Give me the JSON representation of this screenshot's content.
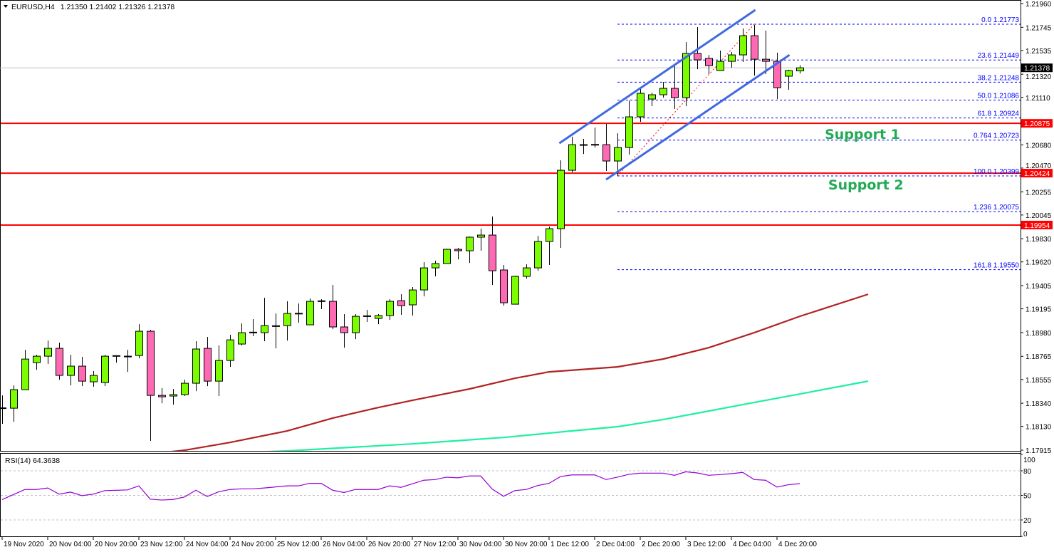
{
  "header": {
    "symbol": "EURUSD,H4",
    "ohlc_text": "1.21350 1.21402 1.21326 1.21378",
    "menu_icon": "triangle-down-icon"
  },
  "chart_data": [
    {
      "type": "candlestick",
      "symbol": "EURUSD",
      "timeframe": "H4",
      "ylim": [
        1.17915,
        1.2196
      ],
      "y_ticks": [
        "1.21960",
        "1.21745",
        "1.21535",
        "1.21320",
        "1.21110",
        "1.20680",
        "1.20470",
        "1.20255",
        "1.20045",
        "1.19830",
        "1.19620",
        "1.19405",
        "1.19195",
        "1.18980",
        "1.18765",
        "1.18555",
        "1.18340",
        "1.18130",
        "1.17915"
      ],
      "x_ticks": [
        "19 Nov 2020",
        "20 Nov 04:00",
        "20 Nov 20:00",
        "23 Nov 12:00",
        "24 Nov 04:00",
        "24 Nov 20:00",
        "25 Nov 12:00",
        "26 Nov 04:00",
        "26 Nov 20:00",
        "27 Nov 12:00",
        "30 Nov 04:00",
        "30 Nov 20:00",
        "1 Dec 12:00",
        "2 Dec 04:00",
        "2 Dec 20:00",
        "3 Dec 12:00",
        "4 Dec 04:00",
        "4 Dec 20:00"
      ],
      "x_tick_every_bars": 4,
      "ohlc_columns": [
        "open",
        "high",
        "low",
        "close"
      ],
      "candles": [
        [
          1.18295,
          1.18411,
          1.18153,
          1.18295
        ],
        [
          1.18295,
          1.18501,
          1.18172,
          1.18463
        ],
        [
          1.18463,
          1.18824,
          1.18463,
          1.1874
        ],
        [
          1.18708,
          1.18779,
          1.18643,
          1.18766
        ],
        [
          1.18766,
          1.18908,
          1.18695,
          1.18837
        ],
        [
          1.18837,
          1.18889,
          1.18553,
          1.18592
        ],
        [
          1.18592,
          1.18779,
          1.18501,
          1.18676
        ],
        [
          1.18676,
          1.1876,
          1.18495,
          1.1854
        ],
        [
          1.18534,
          1.18631,
          1.18489,
          1.18592
        ],
        [
          1.18527,
          1.18779,
          1.18495,
          1.18766
        ],
        [
          1.18766,
          1.1877,
          1.18708,
          1.1877
        ],
        [
          1.1876,
          1.18824,
          1.18624,
          1.18766
        ],
        [
          1.18772,
          1.19056,
          1.18747,
          1.18992
        ],
        [
          1.18992,
          1.19005,
          1.17998,
          1.18411
        ],
        [
          1.18411,
          1.18476,
          1.1834,
          1.18398
        ],
        [
          1.18405,
          1.18469,
          1.18327,
          1.18418
        ],
        [
          1.18418,
          1.18553,
          1.18405,
          1.18521
        ],
        [
          1.18521,
          1.18902,
          1.1845,
          1.18831
        ],
        [
          1.18837,
          1.1894,
          1.18495,
          1.1854
        ],
        [
          1.1854,
          1.18863,
          1.18405,
          1.18727
        ],
        [
          1.18727,
          1.1896,
          1.18669,
          1.18914
        ],
        [
          1.18876,
          1.19063,
          1.18863,
          1.18979
        ],
        [
          1.18979,
          1.19102,
          1.18947,
          1.18982
        ],
        [
          1.18979,
          1.19295,
          1.18902,
          1.19043
        ],
        [
          1.1904,
          1.19153,
          1.18837,
          1.19037
        ],
        [
          1.19043,
          1.19263,
          1.18908,
          1.19153
        ],
        [
          1.19153,
          1.19243,
          1.19069,
          1.1915
        ],
        [
          1.1905,
          1.19289,
          1.1905,
          1.19263
        ],
        [
          1.19263,
          1.19282,
          1.19192,
          1.19266
        ],
        [
          1.19263,
          1.19411,
          1.19011,
          1.19031
        ],
        [
          1.19031,
          1.19147,
          1.18843,
          1.18979
        ],
        [
          1.18979,
          1.19147,
          1.18921,
          1.19127
        ],
        [
          1.19127,
          1.19185,
          1.19076,
          1.1913
        ],
        [
          1.19108,
          1.19147,
          1.19056,
          1.19134
        ],
        [
          1.19134,
          1.19282,
          1.19095,
          1.19263
        ],
        [
          1.19269,
          1.19327,
          1.1914,
          1.19224
        ],
        [
          1.19231,
          1.19392,
          1.19134,
          1.19366
        ],
        [
          1.19366,
          1.19618,
          1.19308,
          1.19566
        ],
        [
          1.19566,
          1.19631,
          1.19489,
          1.19605
        ],
        [
          1.19605,
          1.1974,
          1.19605,
          1.19734
        ],
        [
          1.19734,
          1.19747,
          1.19643,
          1.19721
        ],
        [
          1.19721,
          1.1985,
          1.19611,
          1.19844
        ],
        [
          1.19844,
          1.19921,
          1.19721,
          1.19863
        ],
        [
          1.19863,
          1.20031,
          1.19411,
          1.1954
        ],
        [
          1.19547,
          1.19592,
          1.19224,
          1.1925
        ],
        [
          1.19237,
          1.19495,
          1.19237,
          1.19489
        ],
        [
          1.19489,
          1.19598,
          1.19469,
          1.19566
        ],
        [
          1.19566,
          1.19856,
          1.1954,
          1.19805
        ],
        [
          1.19805,
          1.1994,
          1.19592,
          1.19921
        ],
        [
          1.19921,
          1.2054,
          1.19747,
          1.2045
        ],
        [
          1.2045,
          1.20753,
          1.20431,
          1.20682
        ],
        [
          1.20676,
          1.20734,
          1.20598,
          1.20682
        ],
        [
          1.20682,
          1.20837,
          1.20656,
          1.2068
        ],
        [
          1.20682,
          1.20869,
          1.20444,
          1.20534
        ],
        [
          1.20534,
          1.20785,
          1.20398,
          1.20656
        ],
        [
          1.20656,
          1.21082,
          1.20592,
          1.20934
        ],
        [
          1.20934,
          1.21185,
          1.20889,
          1.21147
        ],
        [
          1.21095,
          1.21153,
          1.21031,
          1.21134
        ],
        [
          1.21134,
          1.2125,
          1.21108,
          1.21192
        ],
        [
          1.21192,
          1.21392,
          1.21005,
          1.21108
        ],
        [
          1.21108,
          1.21611,
          1.21031,
          1.21508
        ],
        [
          1.21508,
          1.21747,
          1.21366,
          1.2145
        ],
        [
          1.21463,
          1.21495,
          1.21321,
          1.21398
        ],
        [
          1.21353,
          1.21534,
          1.21353,
          1.21437
        ],
        [
          1.21437,
          1.21521,
          1.21379,
          1.21495
        ],
        [
          1.21495,
          1.21734,
          1.21431,
          1.21669
        ],
        [
          1.21669,
          1.21766,
          1.21308,
          1.21456
        ],
        [
          1.21456,
          1.21715,
          1.21321,
          1.21437
        ],
        [
          1.21437,
          1.21515,
          1.21095,
          1.21198
        ],
        [
          1.21302,
          1.2136,
          1.21179,
          1.21353
        ],
        [
          1.2135,
          1.21402,
          1.21326,
          1.21378
        ]
      ],
      "colors": {
        "bull": "#7cfc00",
        "bear": "#ff69b4",
        "outline": "#000000"
      },
      "current_price": {
        "value": 1.21378,
        "label": "1.21378",
        "color": "#000000"
      },
      "moving_averages": [
        {
          "color": "#b22222",
          "points": [
            [
              13,
              1.17882
            ],
            [
              16,
              1.17914
            ],
            [
              20,
              1.17985
            ],
            [
              25,
              1.18089
            ],
            [
              29,
              1.18205
            ],
            [
              33,
              1.18301
            ],
            [
              36,
              1.18366
            ],
            [
              41,
              1.18469
            ],
            [
              45,
              1.18566
            ],
            [
              48,
              1.18624
            ],
            [
              54,
              1.18669
            ],
            [
              58,
              1.1874
            ],
            [
              62,
              1.18843
            ],
            [
              66,
              1.18979
            ],
            [
              70,
              1.19127
            ],
            [
              76,
              1.19327
            ]
          ]
        },
        {
          "color": "#1ef0a0",
          "points": [
            [
              18,
              1.17882
            ],
            [
              25,
              1.17908
            ],
            [
              36,
              1.17972
            ],
            [
              44,
              1.1803
            ],
            [
              50,
              1.18089
            ],
            [
              54,
              1.18127
            ],
            [
              58,
              1.18192
            ],
            [
              62,
              1.18269
            ],
            [
              66,
              1.18347
            ],
            [
              71,
              1.18443
            ],
            [
              76,
              1.1854
            ]
          ]
        }
      ],
      "horizontal_levels": [
        {
          "price": 1.20875,
          "label": "1.20875",
          "color": "#ff0000"
        },
        {
          "price": 1.20424,
          "label": "1.20424",
          "color": "#ff0000"
        },
        {
          "price": 1.19954,
          "label": "1.19954",
          "color": "#ff0000"
        }
      ],
      "annotations": [
        {
          "text": "Support 1",
          "price": 1.2078,
          "bar": 75.5
        },
        {
          "text": "Support 2",
          "price": 1.2032,
          "bar": 75.8
        }
      ],
      "fibonacci": {
        "from": [
          54,
          1.20399
        ],
        "to": [
          66,
          1.21773
        ],
        "color": "#0000ff",
        "trend_color": "#ff0000",
        "levels": [
          {
            "level": "0.0",
            "price": 1.21773
          },
          {
            "level": "23.6",
            "price": 1.21449
          },
          {
            "level": "38.2",
            "price": 1.21248
          },
          {
            "level": "50.0",
            "price": 1.21086
          },
          {
            "level": "61.8",
            "price": 1.20924
          },
          {
            "level": "0.764",
            "price": 1.20723
          },
          {
            "level": "100.0",
            "price": 1.20399
          },
          {
            "level": "1.236",
            "price": 1.20075
          },
          {
            "level": "161.8",
            "price": 1.1955
          }
        ]
      },
      "channel": {
        "color": "#4169e1",
        "upper": [
          [
            48.9,
            1.20695
          ],
          [
            66.1,
            1.21902
          ]
        ],
        "lower": [
          [
            53.0,
            1.20366
          ],
          [
            69.1,
            1.21495
          ]
        ]
      }
    },
    {
      "type": "line",
      "title": "RSI(14) 64.3638",
      "ylim": [
        0,
        100
      ],
      "y_ticks": [
        "100",
        "80",
        "50",
        "20",
        "0"
      ],
      "levels": [
        80,
        50,
        20
      ],
      "color": "#9400d3",
      "values": [
        44.8,
        51,
        57.2,
        57.2,
        59,
        51.5,
        54,
        49.7,
        51.5,
        55.8,
        56.2,
        56.7,
        61.6,
        45.4,
        44.3,
        45,
        48,
        56.3,
        48.6,
        54.4,
        57.2,
        58,
        58,
        59,
        60.3,
        61.6,
        61.6,
        64.7,
        64.7,
        56.3,
        53.5,
        57.2,
        57.2,
        57.2,
        61.6,
        59.8,
        64.1,
        68.5,
        69.3,
        72.2,
        71.4,
        73.7,
        73.7,
        57.8,
        48.9,
        55.8,
        57.2,
        62,
        64.7,
        73,
        75,
        75,
        75,
        69.3,
        72.2,
        75.7,
        77.1,
        77.1,
        77.1,
        74.5,
        78.8,
        77.4,
        74.5,
        75.4,
        76.5,
        78,
        69.3,
        68.5,
        60.1,
        63,
        64.36
      ]
    }
  ]
}
